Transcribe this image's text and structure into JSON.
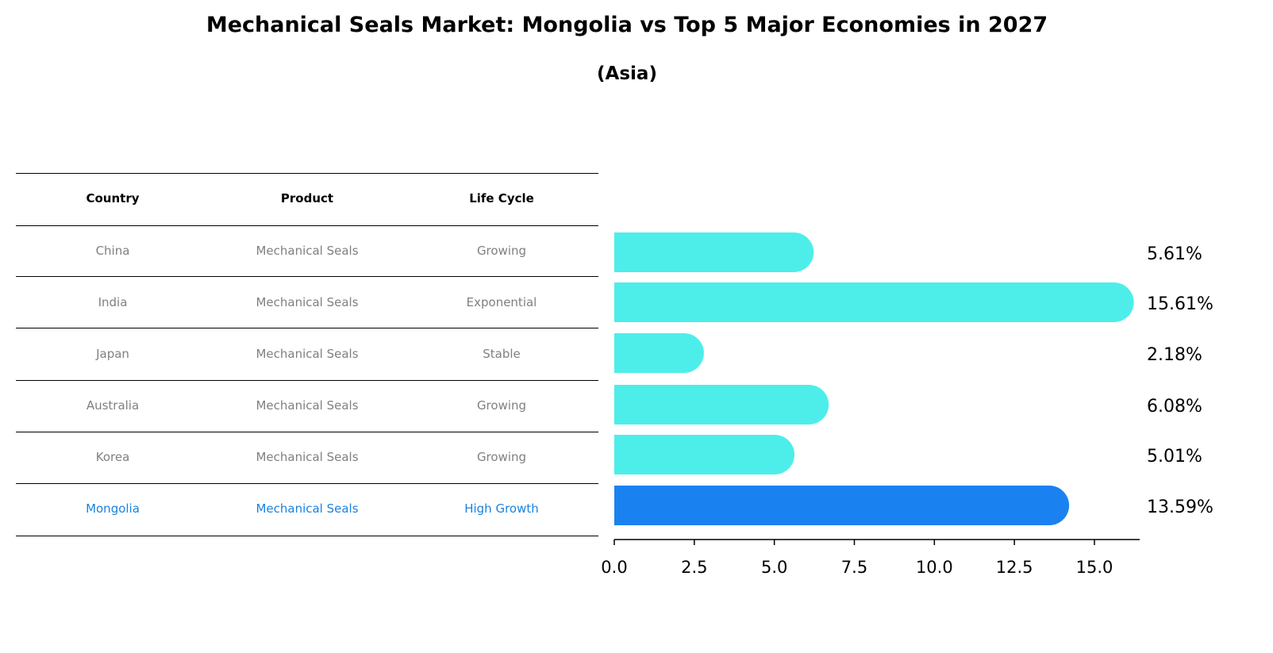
{
  "chart_data": {
    "type": "bar",
    "orientation": "horizontal",
    "title": "Mechanical Seals Market: Mongolia vs Top 5 Major Economies in 2027",
    "subtitle": "(Asia)",
    "categories": [
      "China",
      "India",
      "Japan",
      "Australia",
      "Korea",
      "Mongolia"
    ],
    "values": [
      5.61,
      15.61,
      2.18,
      6.08,
      5.01,
      13.59
    ],
    "value_labels": [
      "5.61%",
      "15.61%",
      "2.18%",
      "6.08%",
      "5.01%",
      "13.59%"
    ],
    "xlim": [
      0,
      16.5
    ],
    "xticks": [
      "0.0",
      "2.5",
      "5.0",
      "7.5",
      "10.0",
      "12.5",
      "15.0"
    ],
    "xtick_values": [
      0,
      2.5,
      5,
      7.5,
      10,
      12.5,
      15
    ],
    "colors": {
      "default": "#4deeea",
      "highlight": "#1a82f0"
    },
    "highlight": "Mongolia"
  },
  "table": {
    "headers": [
      "Country",
      "Product",
      "Life Cycle"
    ],
    "rows": [
      [
        "China",
        "Mechanical Seals",
        "Growing"
      ],
      [
        "India",
        "Mechanical Seals",
        "Exponential"
      ],
      [
        "Japan",
        "Mechanical Seals",
        "Stable"
      ],
      [
        "Australia",
        "Mechanical Seals",
        "Growing"
      ],
      [
        "Korea",
        "Mechanical Seals",
        "Growing"
      ],
      [
        "Mongolia",
        "Mechanical Seals",
        "High Growth"
      ]
    ]
  }
}
